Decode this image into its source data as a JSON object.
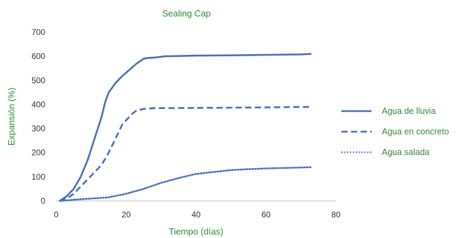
{
  "chart_data": {
    "type": "line",
    "title": "Sealing Cap",
    "xlabel": "Tiempo (días)",
    "ylabel": "Expansión (%)",
    "xlim": [
      0,
      80
    ],
    "ylim": [
      0,
      700
    ],
    "xticks": [
      0,
      20,
      40,
      60,
      80
    ],
    "yticks": [
      0,
      100,
      200,
      300,
      400,
      500,
      600,
      700
    ],
    "grid": false,
    "legend_position": "right",
    "line_color": "#4a6fb5",
    "series": [
      {
        "name": "Agua de lluvia",
        "style": "solid",
        "x": [
          1,
          3,
          5,
          7,
          9,
          11,
          13,
          14,
          15,
          17,
          19,
          21,
          23,
          25,
          26,
          28,
          30,
          31,
          40,
          50,
          60,
          70,
          73
        ],
        "y": [
          0,
          20,
          50,
          100,
          170,
          260,
          350,
          410,
          450,
          490,
          520,
          545,
          570,
          590,
          593,
          595,
          598,
          600,
          603,
          604,
          606,
          608,
          610
        ]
      },
      {
        "name": "Agua en concreto",
        "style": "dashed",
        "x": [
          1,
          3,
          5,
          7,
          9,
          11,
          13,
          15,
          17,
          19,
          21,
          22,
          23,
          25,
          28,
          30,
          40,
          50,
          60,
          70,
          73
        ],
        "y": [
          0,
          10,
          30,
          60,
          90,
          120,
          150,
          200,
          260,
          320,
          350,
          365,
          375,
          382,
          385,
          385,
          386,
          387,
          388,
          390,
          390
        ]
      },
      {
        "name": "Agua salada",
        "style": "dotted",
        "x": [
          1,
          5,
          10,
          15,
          20,
          25,
          30,
          35,
          40,
          45,
          50,
          55,
          60,
          65,
          70,
          73
        ],
        "y": [
          0,
          5,
          10,
          15,
          30,
          50,
          75,
          95,
          112,
          120,
          128,
          132,
          135,
          137,
          139,
          140
        ]
      }
    ]
  }
}
